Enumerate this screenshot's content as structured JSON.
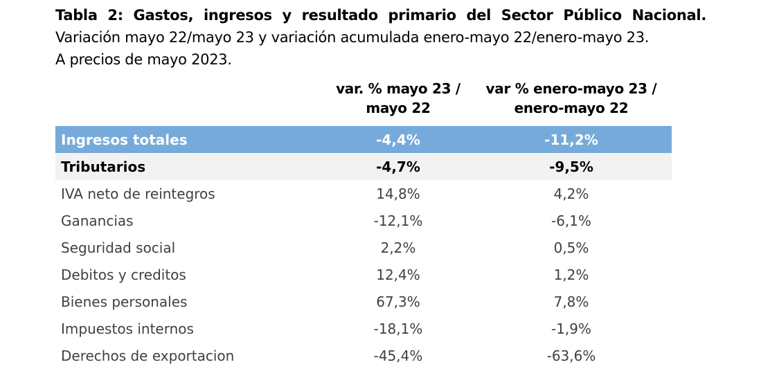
{
  "caption": {
    "title": "Tabla 2: Gastos, ingresos y resultado primario del Sector Público Nacional.",
    "line2": "Variación mayo 22/mayo 23 y variación acumulada enero-mayo 22/enero-mayo 23.",
    "line3": "A precios de mayo 2023."
  },
  "table": {
    "headers": {
      "col1": "",
      "col2_line1": "var. % mayo 23 /",
      "col2_line2": "mayo 22",
      "col3_line1": "var % enero-mayo 23 /",
      "col3_line2": "enero-mayo 22"
    },
    "rows": [
      {
        "label": "Ingresos totales",
        "var_mes": "-4,4%",
        "var_acum": "-11,2%"
      },
      {
        "label": "Tributarios",
        "var_mes": "-4,7%",
        "var_acum": "-9,5%"
      },
      {
        "label": "IVA neto de reintegros",
        "var_mes": "14,8%",
        "var_acum": "4,2%"
      },
      {
        "label": "Ganancias",
        "var_mes": "-12,1%",
        "var_acum": "-6,1%"
      },
      {
        "label": "Seguridad social",
        "var_mes": "2,2%",
        "var_acum": "0,5%"
      },
      {
        "label": "Debitos y creditos",
        "var_mes": "12,4%",
        "var_acum": "1,2%"
      },
      {
        "label": "Bienes personales",
        "var_mes": "67,3%",
        "var_acum": "7,8%"
      },
      {
        "label": "Impuestos internos",
        "var_mes": "-18,1%",
        "var_acum": "-1,9%"
      },
      {
        "label": "Derechos de exportacion",
        "var_mes": "-45,4%",
        "var_acum": "-63,6%"
      }
    ]
  },
  "colors": {
    "total_row_bg": "#76aadb",
    "subtotal_row_bg": "#f2f2f2",
    "body_text": "#404040"
  }
}
